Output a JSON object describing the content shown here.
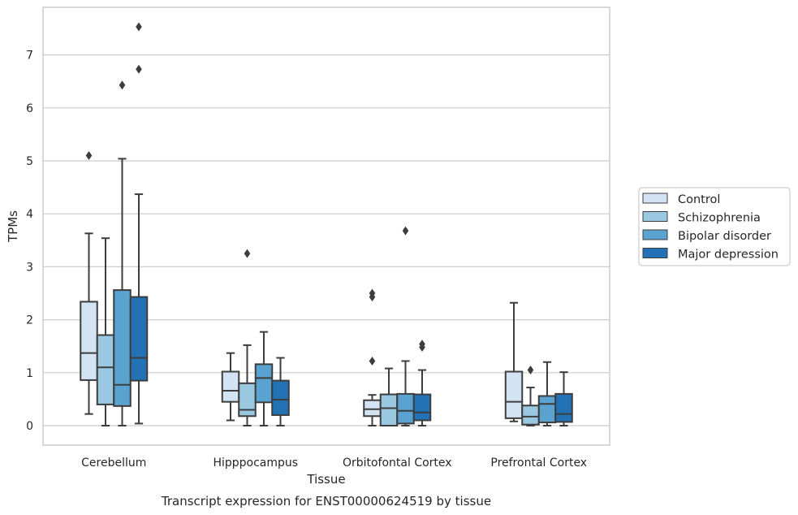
{
  "chart_data": {
    "type": "box",
    "title": "Transcript expression for ENST00000624519 by tissue",
    "xlabel": "Tissue",
    "ylabel": "TPMs",
    "ylim": [
      -0.35,
      7.9
    ],
    "yticks": [
      0,
      1,
      2,
      3,
      4,
      5,
      6,
      7
    ],
    "grid": true,
    "legend_position": "right",
    "categories": [
      "Cerebellum",
      "Hipppocampus",
      "Orbitofontal Cortex",
      "Prefrontal Cortex"
    ],
    "series": [
      {
        "name": "Control",
        "color": "#d3e3f3",
        "boxes": [
          {
            "whislo": 0.22,
            "q1": 0.86,
            "med": 1.37,
            "q3": 2.34,
            "whishi": 3.63,
            "fliers": [
              5.1
            ]
          },
          {
            "whislo": 0.1,
            "q1": 0.45,
            "med": 0.66,
            "q3": 1.02,
            "whishi": 1.37,
            "fliers": []
          },
          {
            "whislo": 0.0,
            "q1": 0.18,
            "med": 0.31,
            "q3": 0.48,
            "whishi": 0.58,
            "fliers": [
              1.22,
              2.43,
              2.5
            ]
          },
          {
            "whislo": 0.08,
            "q1": 0.14,
            "med": 0.45,
            "q3": 1.02,
            "whishi": 2.32,
            "fliers": []
          }
        ]
      },
      {
        "name": "Schizophrenia",
        "color": "#9ac8e0",
        "boxes": [
          {
            "whislo": 0.0,
            "q1": 0.4,
            "med": 1.1,
            "q3": 1.71,
            "whishi": 3.54,
            "fliers": []
          },
          {
            "whislo": 0.0,
            "q1": 0.18,
            "med": 0.3,
            "q3": 0.8,
            "whishi": 1.52,
            "fliers": [
              3.25
            ]
          },
          {
            "whislo": 0.0,
            "q1": 0.0,
            "med": 0.33,
            "q3": 0.59,
            "whishi": 1.08,
            "fliers": []
          },
          {
            "whislo": 0.0,
            "q1": 0.02,
            "med": 0.17,
            "q3": 0.38,
            "whishi": 0.72,
            "fliers": [
              1.05
            ]
          }
        ]
      },
      {
        "name": "Bipolar disorder",
        "color": "#5aa2cf",
        "boxes": [
          {
            "whislo": 0.0,
            "q1": 0.37,
            "med": 0.77,
            "q3": 2.56,
            "whishi": 5.04,
            "fliers": [
              6.43
            ]
          },
          {
            "whislo": 0.0,
            "q1": 0.44,
            "med": 0.9,
            "q3": 1.16,
            "whishi": 1.77,
            "fliers": []
          },
          {
            "whislo": 0.0,
            "q1": 0.04,
            "med": 0.28,
            "q3": 0.6,
            "whishi": 1.22,
            "fliers": [
              3.68
            ]
          },
          {
            "whislo": 0.0,
            "q1": 0.06,
            "med": 0.41,
            "q3": 0.56,
            "whishi": 1.2,
            "fliers": []
          }
        ]
      },
      {
        "name": "Major depression",
        "color": "#2272b5",
        "boxes": [
          {
            "whislo": 0.04,
            "q1": 0.85,
            "med": 1.28,
            "q3": 2.43,
            "whishi": 4.37,
            "fliers": [
              6.73,
              7.53
            ]
          },
          {
            "whislo": 0.0,
            "q1": 0.2,
            "med": 0.49,
            "q3": 0.85,
            "whishi": 1.28,
            "fliers": []
          },
          {
            "whislo": 0.0,
            "q1": 0.1,
            "med": 0.25,
            "q3": 0.59,
            "whishi": 1.05,
            "fliers": [
              1.48,
              1.54
            ]
          },
          {
            "whislo": 0.0,
            "q1": 0.07,
            "med": 0.22,
            "q3": 0.6,
            "whishi": 1.01,
            "fliers": []
          }
        ]
      }
    ]
  },
  "colors": {
    "grid": "#cccccc",
    "frame": "#cccccc",
    "box_edge": "#3d3d3d"
  }
}
